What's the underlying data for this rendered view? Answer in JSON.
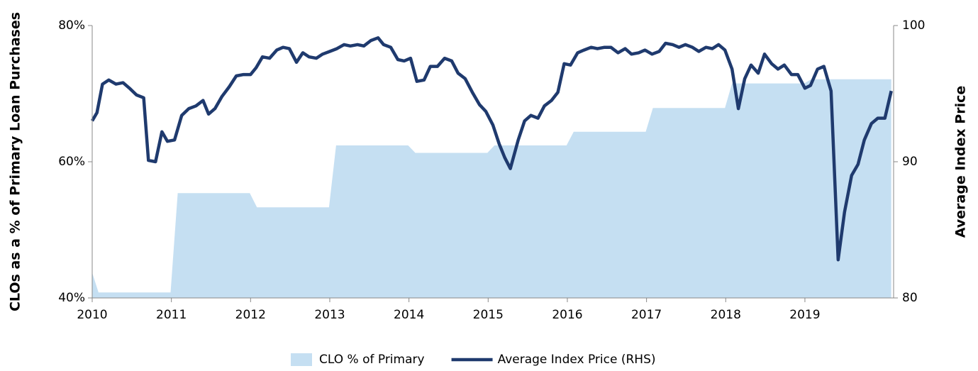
{
  "chart_data": {
    "type": "line",
    "y_label": "CLOs as a % of Primary Loan Purchases",
    "y2_label": "Average Index Price",
    "xlim": [
      2010,
      2020.12
    ],
    "xticks": [
      2010,
      2011,
      2012,
      2013,
      2014,
      2015,
      2016,
      2017,
      2018,
      2019
    ],
    "ylim": [
      40,
      80
    ],
    "yticks": [
      {
        "value": 40,
        "label": "40%"
      },
      {
        "value": 60,
        "label": "60%"
      },
      {
        "value": 80,
        "label": "80%"
      }
    ],
    "y2lim": [
      80,
      100
    ],
    "y2ticks": [
      80,
      90,
      100
    ],
    "legend": "bottom",
    "series": [
      {
        "name": "CLO % of Primary",
        "type": "area",
        "color": "#c5dff2",
        "x": [
          2010,
          2010.08,
          2010.99,
          2011.08,
          2011.99,
          2012.08,
          2012.99,
          2013.08,
          2013.99,
          2014.08,
          2014.99,
          2015.08,
          2015.99,
          2016.08,
          2016.99,
          2017.08,
          2017.99,
          2018.08,
          2018.99,
          2019.08,
          2020.09
        ],
        "values": [
          43.7,
          40.8,
          40.8,
          55.4,
          55.4,
          53.3,
          53.3,
          62.4,
          62.4,
          61.3,
          61.3,
          62.4,
          62.4,
          64.4,
          64.4,
          67.9,
          67.9,
          71.5,
          71.5,
          72.1,
          72.1
        ]
      },
      {
        "name": "Average Index Price (RHS)",
        "type": "line",
        "color": "#1f3a6e",
        "axis": "y2",
        "x": [
          2010.0,
          2010.06,
          2010.13,
          2010.21,
          2010.3,
          2010.39,
          2010.47,
          2010.56,
          2010.65,
          2010.71,
          2010.8,
          2010.88,
          2010.95,
          2011.04,
          2011.13,
          2011.22,
          2011.31,
          2011.4,
          2011.47,
          2011.55,
          2011.64,
          2011.73,
          2011.82,
          2011.91,
          2012.0,
          2012.07,
          2012.15,
          2012.24,
          2012.33,
          2012.41,
          2012.49,
          2012.58,
          2012.66,
          2012.74,
          2012.83,
          2012.91,
          2013.0,
          2013.09,
          2013.18,
          2013.26,
          2013.35,
          2013.43,
          2013.52,
          2013.61,
          2013.68,
          2013.77,
          2013.86,
          2013.94,
          2014.02,
          2014.1,
          2014.19,
          2014.27,
          2014.36,
          2014.45,
          2014.54,
          2014.62,
          2014.71,
          2014.8,
          2014.89,
          2014.97,
          2015.06,
          2015.14,
          2015.21,
          2015.28,
          2015.38,
          2015.46,
          2015.54,
          2015.63,
          2015.71,
          2015.8,
          2015.88,
          2015.96,
          2016.04,
          2016.13,
          2016.21,
          2016.3,
          2016.38,
          2016.47,
          2016.55,
          2016.64,
          2016.73,
          2016.81,
          2016.9,
          2016.98,
          2017.07,
          2017.16,
          2017.24,
          2017.33,
          2017.41,
          2017.49,
          2017.58,
          2017.66,
          2017.75,
          2017.83,
          2017.91,
          2017.99,
          2018.08,
          2018.16,
          2018.24,
          2018.32,
          2018.41,
          2018.49,
          2018.58,
          2018.66,
          2018.74,
          2018.83,
          2018.91,
          2019.0,
          2019.07,
          2019.16,
          2019.24,
          2019.33,
          2019.42,
          2019.5,
          2019.59,
          2019.67,
          2019.75,
          2019.84,
          2019.92,
          2020.01,
          2020.09
        ],
        "values": [
          93.0,
          93.6,
          95.7,
          96.0,
          95.7,
          95.8,
          95.4,
          94.9,
          94.7,
          90.1,
          90.0,
          92.2,
          91.5,
          91.6,
          93.4,
          93.9,
          94.1,
          94.5,
          93.5,
          93.9,
          94.8,
          95.5,
          96.3,
          96.4,
          96.4,
          96.9,
          97.7,
          97.6,
          98.2,
          98.4,
          98.3,
          97.3,
          98.0,
          97.7,
          97.6,
          97.9,
          98.1,
          98.3,
          98.6,
          98.5,
          98.6,
          98.5,
          98.9,
          99.1,
          98.6,
          98.4,
          97.5,
          97.4,
          97.6,
          95.9,
          96.0,
          97.0,
          97.0,
          97.6,
          97.4,
          96.5,
          96.1,
          95.1,
          94.2,
          93.7,
          92.7,
          91.3,
          90.3,
          89.5,
          91.6,
          93.0,
          93.4,
          93.2,
          94.1,
          94.5,
          95.1,
          97.2,
          97.1,
          98.0,
          98.2,
          98.4,
          98.3,
          98.4,
          98.4,
          98.0,
          98.3,
          97.9,
          98.0,
          98.2,
          97.9,
          98.1,
          98.7,
          98.6,
          98.4,
          98.6,
          98.4,
          98.1,
          98.4,
          98.3,
          98.6,
          98.2,
          96.8,
          93.9,
          96.1,
          97.1,
          96.5,
          97.9,
          97.2,
          96.8,
          97.1,
          96.4,
          96.4,
          95.4,
          95.6,
          96.8,
          97.0,
          95.2,
          82.8,
          86.3,
          89.0,
          89.8,
          91.6,
          92.8,
          93.2,
          93.2,
          95.2
        ]
      }
    ]
  }
}
